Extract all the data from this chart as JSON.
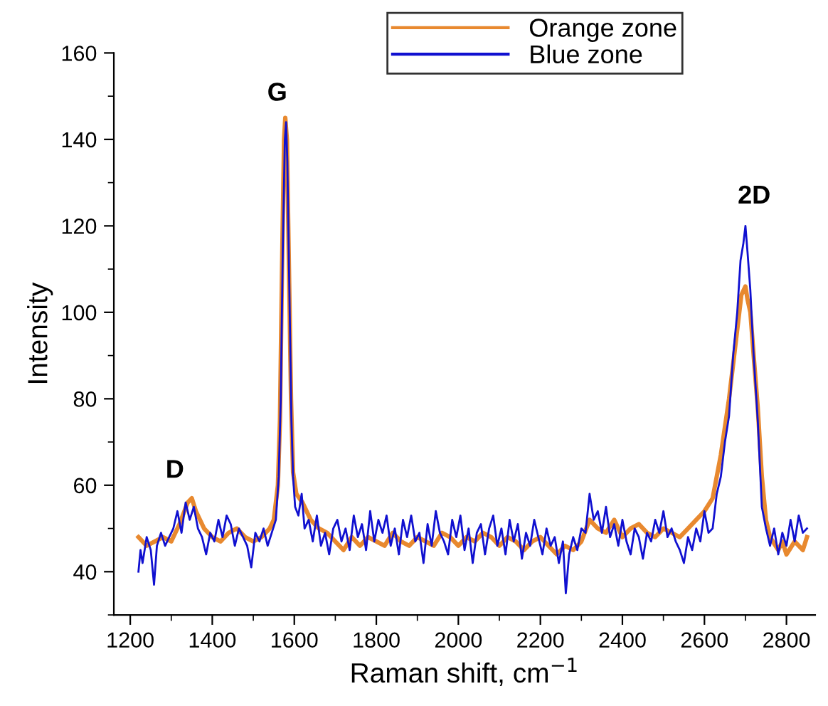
{
  "chart_data": {
    "type": "line",
    "xlabel": "Raman shift, cm$^{−1}$",
    "ylabel": "Intensity",
    "xlim": [
      1160,
      2870
    ],
    "xticks": [
      1200,
      1400,
      1600,
      1800,
      2000,
      2200,
      2400,
      2600,
      2800
    ],
    "ylim": [
      30,
      160
    ],
    "yticks": [
      40,
      60,
      80,
      100,
      120,
      140,
      160
    ],
    "grid": false,
    "legend": "top",
    "marker": "none",
    "line_style": "solid",
    "annotations": [
      "D",
      "G",
      "2D"
    ],
    "series": [
      {
        "name": "Orange zone",
        "color": "#e8892f",
        "x": [
          1220,
          1240,
          1260,
          1280,
          1300,
          1320,
          1340,
          1350,
          1360,
          1380,
          1400,
          1420,
          1440,
          1460,
          1480,
          1500,
          1520,
          1540,
          1550,
          1560,
          1565,
          1570,
          1575,
          1578,
          1582,
          1587,
          1592,
          1597,
          1605,
          1620,
          1640,
          1660,
          1680,
          1700,
          1720,
          1740,
          1760,
          1780,
          1800,
          1820,
          1840,
          1860,
          1880,
          1900,
          1920,
          1940,
          1960,
          1980,
          2000,
          2020,
          2040,
          2060,
          2080,
          2100,
          2120,
          2140,
          2160,
          2180,
          2200,
          2220,
          2240,
          2260,
          2280,
          2300,
          2320,
          2340,
          2360,
          2380,
          2400,
          2420,
          2440,
          2460,
          2480,
          2500,
          2520,
          2540,
          2560,
          2580,
          2600,
          2620,
          2640,
          2660,
          2670,
          2680,
          2690,
          2700,
          2705,
          2712,
          2720,
          2730,
          2740,
          2750,
          2760,
          2780,
          2790,
          2800,
          2820,
          2840,
          2850
        ],
        "values": [
          48,
          46,
          47,
          48,
          47,
          51,
          56,
          57,
          54,
          50,
          48,
          47,
          49,
          50,
          48,
          47,
          48,
          50,
          52,
          60,
          75,
          110,
          140,
          145,
          140,
          110,
          80,
          63,
          58,
          56,
          52,
          50,
          49,
          47,
          45,
          48,
          46,
          48,
          47,
          46,
          49,
          47,
          46,
          48,
          47,
          46,
          49,
          48,
          46,
          48,
          47,
          49,
          48,
          46,
          48,
          47,
          45,
          47,
          48,
          46,
          44,
          46,
          45,
          47,
          52,
          50,
          49,
          52,
          48,
          50,
          51,
          49,
          48,
          50,
          49,
          48,
          50,
          52,
          54,
          57,
          67,
          80,
          88,
          96,
          104,
          106,
          103,
          100,
          90,
          78,
          62,
          52,
          48,
          45,
          47,
          44,
          47,
          45,
          48
        ]
      },
      {
        "name": "Blue zone",
        "color": "#1010d0",
        "x": [
          1220,
          1225,
          1230,
          1240,
          1250,
          1258,
          1265,
          1275,
          1285,
          1295,
          1305,
          1315,
          1325,
          1335,
          1345,
          1355,
          1365,
          1375,
          1385,
          1395,
          1405,
          1415,
          1425,
          1435,
          1445,
          1455,
          1465,
          1475,
          1485,
          1495,
          1505,
          1515,
          1525,
          1535,
          1545,
          1555,
          1562,
          1567,
          1572,
          1577,
          1580,
          1583,
          1588,
          1593,
          1597,
          1602,
          1610,
          1618,
          1625,
          1635,
          1645,
          1655,
          1665,
          1675,
          1685,
          1695,
          1705,
          1715,
          1725,
          1735,
          1745,
          1755,
          1765,
          1775,
          1785,
          1795,
          1805,
          1815,
          1825,
          1835,
          1845,
          1855,
          1865,
          1875,
          1885,
          1895,
          1905,
          1915,
          1925,
          1935,
          1945,
          1955,
          1965,
          1975,
          1985,
          1995,
          2005,
          2015,
          2025,
          2035,
          2045,
          2055,
          2065,
          2075,
          2085,
          2095,
          2105,
          2115,
          2125,
          2135,
          2145,
          2155,
          2165,
          2175,
          2185,
          2195,
          2205,
          2215,
          2225,
          2235,
          2245,
          2255,
          2262,
          2270,
          2280,
          2290,
          2300,
          2310,
          2320,
          2330,
          2340,
          2350,
          2360,
          2370,
          2380,
          2390,
          2400,
          2410,
          2420,
          2430,
          2440,
          2450,
          2460,
          2470,
          2480,
          2490,
          2500,
          2510,
          2520,
          2530,
          2540,
          2550,
          2560,
          2570,
          2580,
          2590,
          2600,
          2610,
          2620,
          2630,
          2640,
          2650,
          2660,
          2670,
          2680,
          2688,
          2695,
          2700,
          2705,
          2712,
          2720,
          2730,
          2740,
          2750,
          2760,
          2770,
          2780,
          2790,
          2800,
          2810,
          2820,
          2830,
          2840,
          2850
        ],
        "values": [
          40,
          45,
          42,
          48,
          45,
          37,
          46,
          49,
          46,
          48,
          50,
          54,
          49,
          56,
          52,
          55,
          50,
          48,
          44,
          49,
          47,
          52,
          48,
          53,
          51,
          46,
          50,
          48,
          46,
          41,
          49,
          47,
          50,
          46,
          49,
          52,
          62,
          80,
          115,
          140,
          144,
          135,
          105,
          75,
          62,
          55,
          53,
          58,
          50,
          52,
          47,
          53,
          46,
          49,
          44,
          50,
          52,
          47,
          50,
          45,
          53,
          48,
          51,
          45,
          54,
          47,
          52,
          49,
          53,
          46,
          50,
          44,
          52,
          48,
          53,
          47,
          49,
          42,
          51,
          46,
          54,
          49,
          47,
          44,
          52,
          48,
          53,
          45,
          50,
          42,
          49,
          51,
          44,
          50,
          53,
          46,
          50,
          44,
          52,
          47,
          51,
          43,
          49,
          46,
          52,
          48,
          44,
          50,
          46,
          48,
          42,
          47,
          35,
          44,
          48,
          45,
          50,
          49,
          58,
          52,
          54,
          49,
          55,
          48,
          51,
          46,
          52,
          47,
          44,
          50,
          48,
          43,
          49,
          47,
          52,
          49,
          54,
          48,
          50,
          47,
          45,
          42,
          48,
          45,
          50,
          47,
          54,
          49,
          50,
          58,
          62,
          70,
          76,
          90,
          100,
          112,
          116,
          120,
          114,
          105,
          90,
          75,
          55,
          50,
          46,
          50,
          44,
          49,
          46,
          52,
          47,
          53,
          49,
          50
        ]
      }
    ]
  }
}
